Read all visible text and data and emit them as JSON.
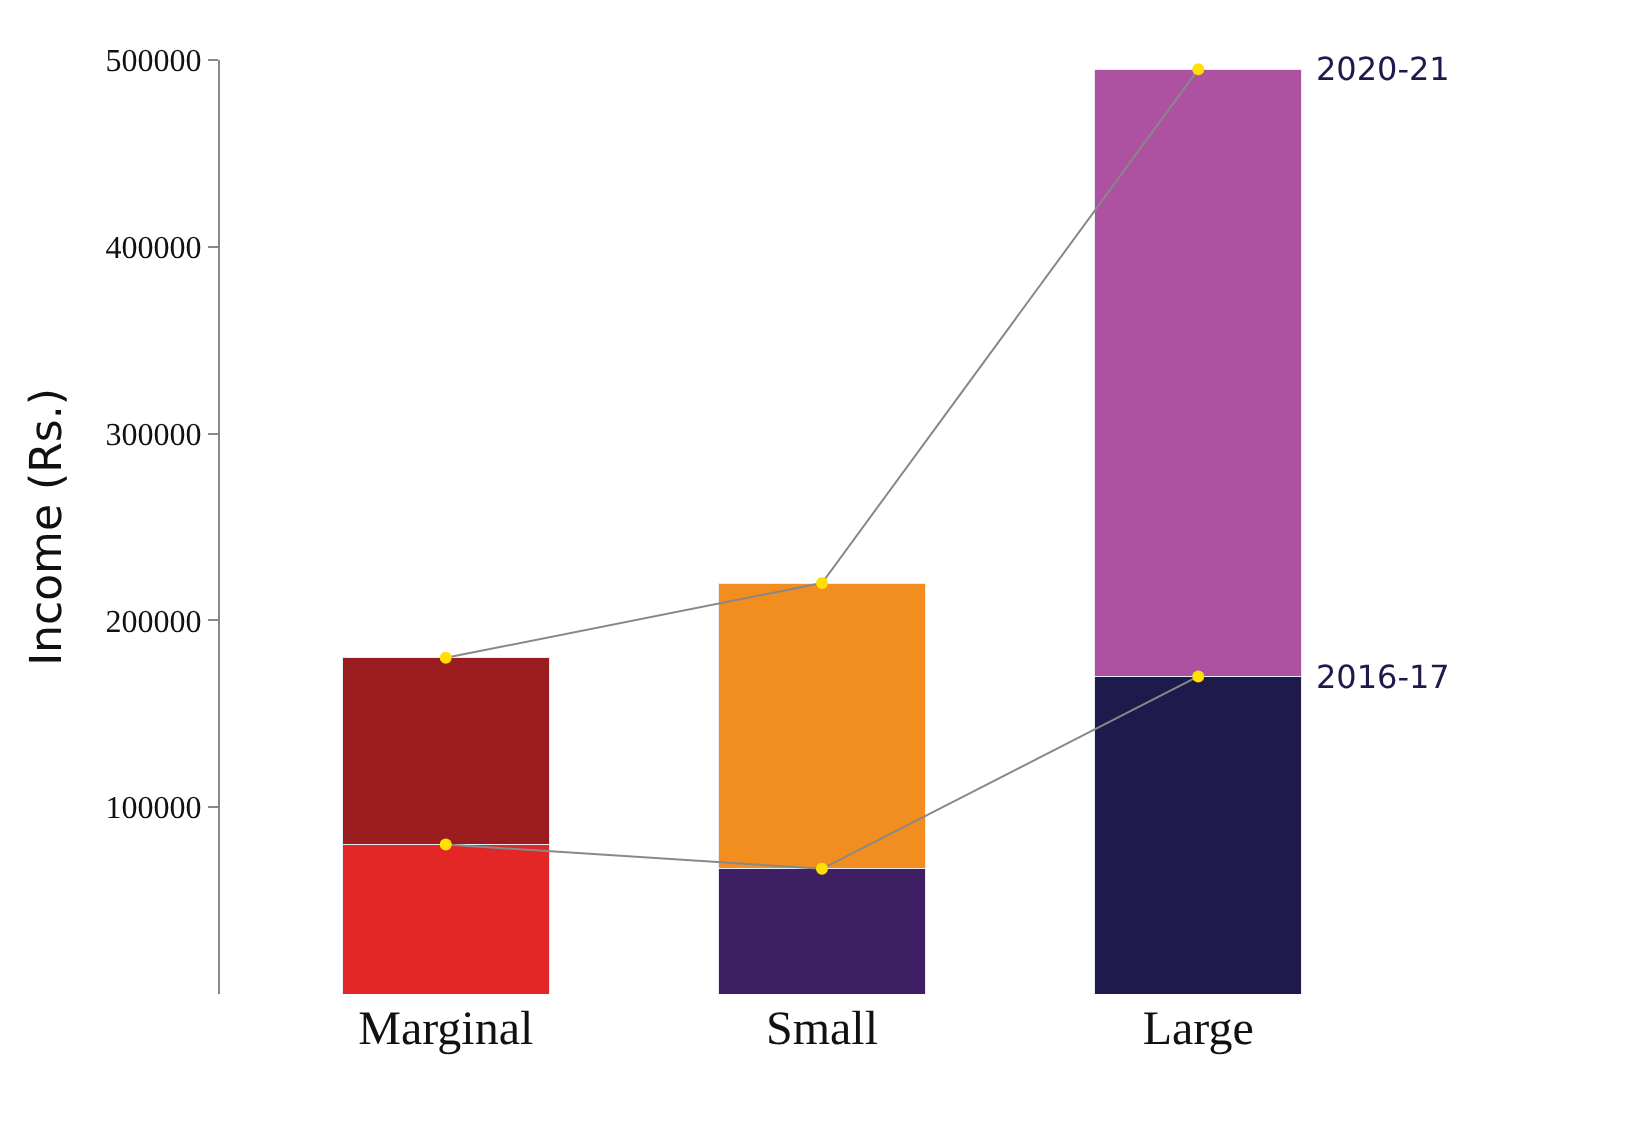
{
  "chart_data": {
    "type": "bar",
    "stacked": true,
    "ylabel": "Income (Rs.)",
    "categories": [
      "Marginal",
      "Small",
      "Large"
    ],
    "series": [
      {
        "values": [
          80000,
          67000,
          170000
        ],
        "colors": [
          "#e32726",
          "#3f1f63",
          "#1e1a4b"
        ]
      },
      {
        "values": [
          100000,
          153000,
          325000
        ],
        "colors": [
          "#9b1c1f",
          "#f28e20",
          "#ad51a0"
        ]
      },
      {
        "type": "line",
        "name": "2016-17",
        "values": [
          80000,
          67000,
          170000
        ],
        "color": "#888888"
      },
      {
        "type": "line",
        "name": "2020-21",
        "values": [
          180000,
          220000,
          495000
        ],
        "color": "#888888"
      }
    ],
    "ylim": [
      0,
      500000
    ],
    "yticks": [
      100000,
      200000,
      300000,
      400000,
      500000
    ],
    "legend": false,
    "marker": "circle",
    "line_style": "solid"
  }
}
